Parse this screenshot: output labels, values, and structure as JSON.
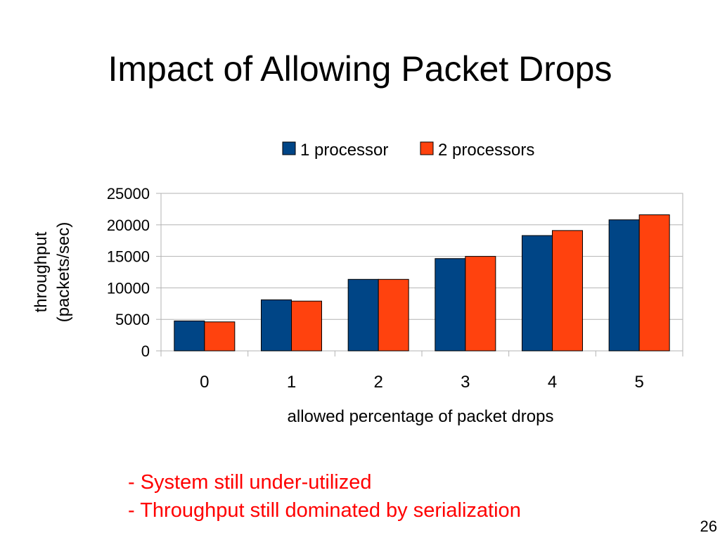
{
  "slide": {
    "title": "Impact of Allowing Packet Drops",
    "number": "26",
    "notes": [
      "- System still under-utilized",
      "- Throughput still dominated by serialization"
    ]
  },
  "chart_data": {
    "type": "bar",
    "categories": [
      "0",
      "1",
      "2",
      "3",
      "4",
      "5"
    ],
    "series": [
      {
        "name": "1 processor",
        "values": [
          4750,
          8100,
          11350,
          14650,
          18300,
          20800
        ],
        "color": "#004586"
      },
      {
        "name": "2 processors",
        "values": [
          4600,
          7900,
          11350,
          15000,
          19100,
          21600
        ],
        "color": "#ff420e"
      }
    ],
    "xlabel": "allowed percentage of packet drops",
    "ylabel": [
      "throughput",
      "(packets/sec)"
    ],
    "ylim": [
      0,
      25000
    ],
    "yticks": [
      0,
      5000,
      10000,
      15000,
      20000,
      25000
    ],
    "grid": true,
    "legend": "top"
  }
}
